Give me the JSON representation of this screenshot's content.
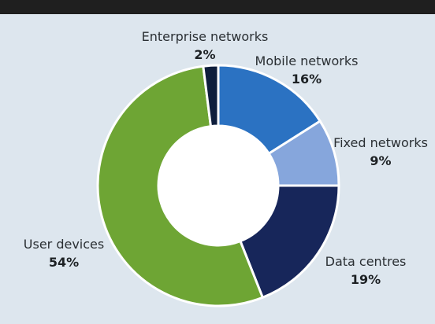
{
  "chart_data": {
    "type": "pie",
    "donut": true,
    "legend": "none",
    "slices": [
      {
        "label": "Mobile networks",
        "value": 16,
        "value_label": "16%",
        "color": "#2b72c2"
      },
      {
        "label": "Fixed networks",
        "value": 9,
        "value_label": "9%",
        "color": "#86a6dc"
      },
      {
        "label": "Data centres",
        "value": 19,
        "value_label": "19%",
        "color": "#17265a"
      },
      {
        "label": "User devices",
        "value": 54,
        "value_label": "54%",
        "color": "#6ea534"
      },
      {
        "label": "Enterprise networks",
        "value": 2,
        "value_label": "2%",
        "color": "#0e1e3c"
      }
    ]
  }
}
